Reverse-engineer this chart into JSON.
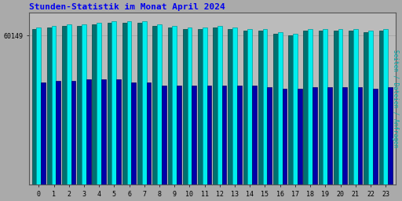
{
  "title": "Stunden-Statistik im Monat April 2024",
  "ylabel": "Seiten / Dateien / Anfragen",
  "ytick_label": "60149",
  "hours": [
    0,
    1,
    2,
    3,
    4,
    5,
    6,
    7,
    8,
    9,
    10,
    11,
    12,
    13,
    14,
    15,
    16,
    17,
    18,
    19,
    20,
    21,
    22,
    23
  ],
  "seiten": [
    97,
    98,
    99,
    99,
    100,
    101,
    101,
    101,
    99,
    98,
    97,
    97,
    98,
    97,
    96,
    96,
    94,
    93,
    96,
    96,
    96,
    96,
    95,
    96
  ],
  "dateien": [
    96,
    97,
    98,
    98,
    99,
    100,
    100,
    100,
    98,
    97,
    96,
    96,
    97,
    96,
    95,
    95,
    93,
    92,
    95,
    95,
    95,
    95,
    94,
    95
  ],
  "anfragen": [
    63,
    64,
    64,
    65,
    65,
    65,
    63,
    63,
    61,
    61,
    61,
    61,
    61,
    61,
    61,
    60,
    59,
    59,
    60,
    60,
    60,
    60,
    59,
    60
  ],
  "color_seiten": "#00EEEE",
  "color_dateien": "#007070",
  "color_anfragen": "#0000AA",
  "color_seiten_edge": "#009999",
  "color_dateien_edge": "#004444",
  "color_anfragen_edge": "#000066",
  "bg_color": "#AAAAAA",
  "plot_bg_color": "#BBBBBB",
  "title_color": "#0000EE",
  "ylabel_color": "#00AAAA",
  "bar_width": 0.3,
  "ylim_min": 0,
  "ylim_max": 106,
  "ytick_pos": 92,
  "title_fontsize": 8,
  "tick_fontsize": 6
}
